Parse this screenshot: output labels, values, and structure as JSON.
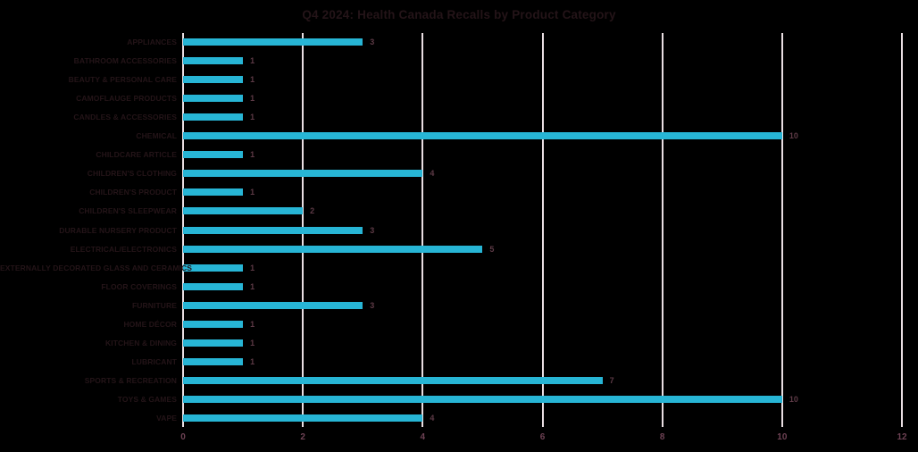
{
  "chart_data": {
    "type": "bar",
    "orientation": "horizontal",
    "title": "Q4 2024: Health Canada Recalls by Product Category",
    "categories": [
      "APPLIANCES",
      "BATHROOM ACCESSORIES",
      "BEAUTY & PERSONAL CARE",
      "CAMOFLAUGE PRODUCTS",
      "CANDLES & ACCESSORIES",
      "CHEMICAL",
      "CHILDCARE ARTICLE",
      "CHILDREN'S CLOTHING",
      "CHILDREN'S PRODUCT",
      "CHILDREN'S SLEEPWEAR",
      "DURABLE NURSERY PRODUCT",
      "ELECTRICAL/ELECTRONICS",
      "EXTERNALLY DECORATED GLASS AND CERAMICS",
      "FLOOR COVERINGS",
      "FURNITURE",
      "HOME DÉCOR",
      "KITCHEN & DINING",
      "LUBRICANT",
      "SPORTS & RECREATION",
      "TOYS & GAMES",
      "VAPE"
    ],
    "values": [
      3,
      1,
      1,
      1,
      1,
      10,
      1,
      4,
      1,
      2,
      3,
      5,
      1,
      1,
      3,
      1,
      1,
      1,
      7,
      10,
      4
    ],
    "xlabel": "",
    "ylabel": "",
    "xlim": [
      0,
      12
    ],
    "x_ticks": [
      0,
      2,
      4,
      6,
      8,
      10,
      12
    ],
    "grid": "vertical",
    "legend": "none",
    "data_labels": "shown-at-bar-end",
    "colors": {
      "background": "#000000",
      "bar": "#27b5d5",
      "gridline": "#e9dee2",
      "title_text": "#241418",
      "category_text": "#241418",
      "value_label_text": "#5d3a46",
      "axis_tick_text": "#6e4254"
    }
  }
}
